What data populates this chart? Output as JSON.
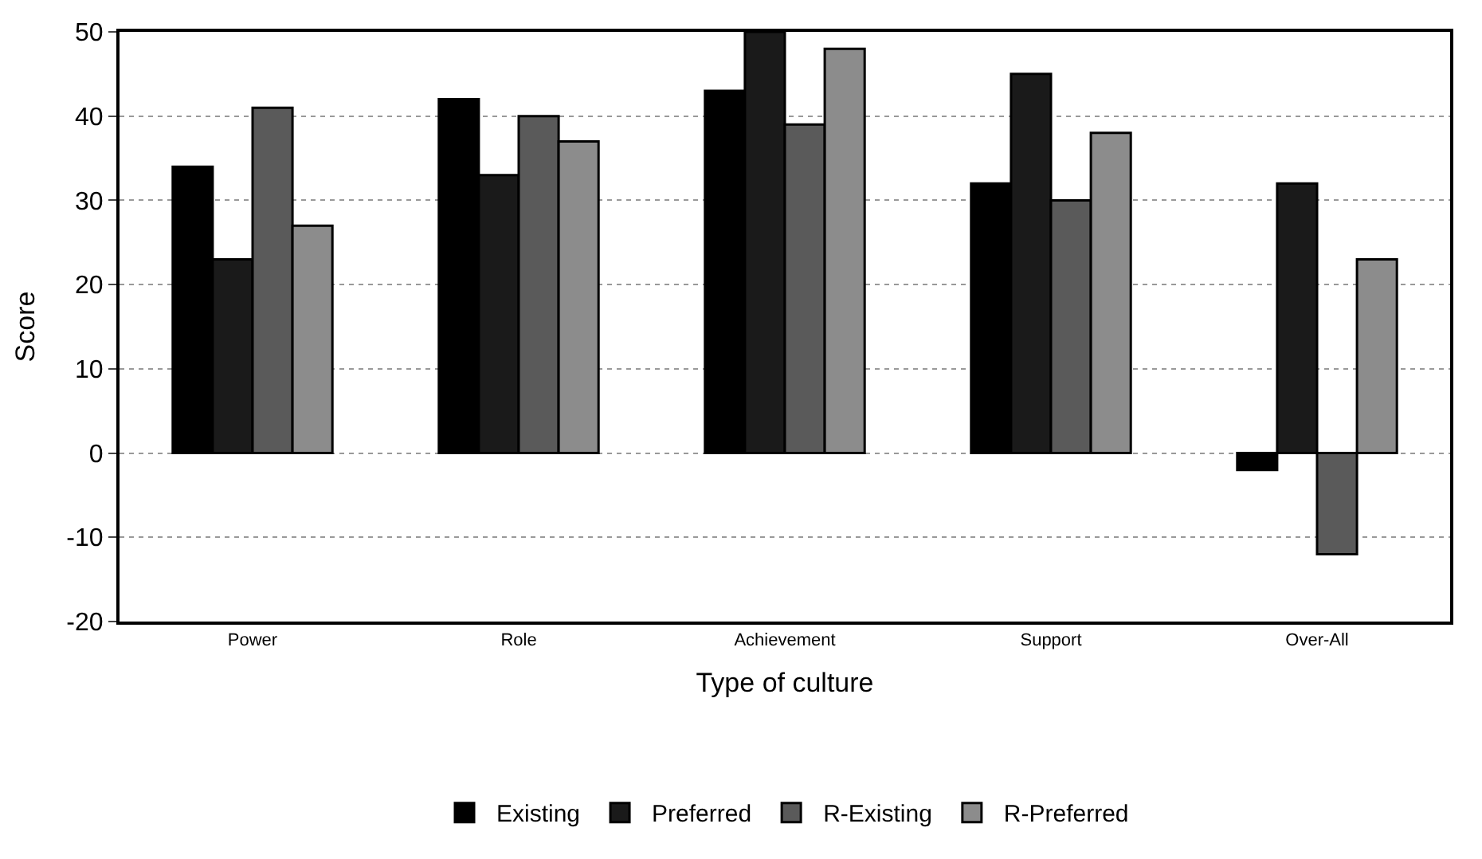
{
  "chart_data": {
    "type": "bar",
    "xlabel": "Type of culture",
    "ylabel": "Score",
    "categories": [
      "Power",
      "Role",
      "Achievement",
      "Support",
      "Over-All"
    ],
    "series": [
      {
        "name": "Existing",
        "color": "#000000",
        "values": [
          34,
          42,
          43,
          32,
          -2
        ]
      },
      {
        "name": "Preferred",
        "color": "#1a1a1a",
        "values": [
          23,
          33,
          50,
          45,
          32
        ]
      },
      {
        "name": "R-Existing",
        "color": "#5a5a5a",
        "values": [
          41,
          40,
          39,
          30,
          -12
        ]
      },
      {
        "name": "R-Preferred",
        "color": "#8c8c8c",
        "values": [
          27,
          37,
          48,
          38,
          23
        ]
      }
    ],
    "ylim": [
      -20,
      50
    ],
    "yticks": [
      -20,
      -10,
      0,
      10,
      20,
      30,
      40,
      50
    ],
    "grid": "y",
    "legend": "bottom"
  }
}
